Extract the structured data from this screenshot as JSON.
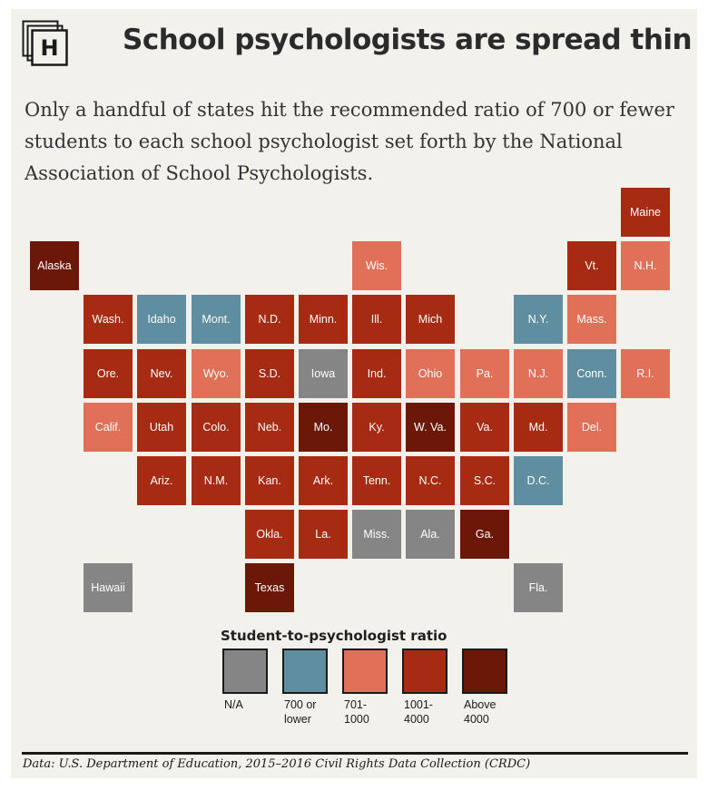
{
  "title": "School psychologists are spread thin",
  "subtitle": "Only a handful of states hit the recommended ratio of 700 or fewer students to each school psychologist set forth by the National Association of School Psychologists.",
  "logo_icon": "huffpost-h-logo",
  "source": "Data: U.S. Department of Education, 2015–2016 Civil Rights Data Collection (CRDC)",
  "colors": {
    "na": "#858585",
    "le700": "#5e8ea0",
    "r701_1000": "#e07057",
    "r1001_4000": "#a72b13",
    "above4000": "#6b1808"
  },
  "chart_data": {
    "type": "tile-map",
    "title": "School psychologists are spread thin",
    "legend": {
      "title": "Student-to-psychologist ratio",
      "categories": [
        {
          "key": "na",
          "label": "N/A"
        },
        {
          "key": "le700",
          "label": "700 or lower"
        },
        {
          "key": "r701_1000",
          "label": "701-1000"
        },
        {
          "key": "r1001_4000",
          "label": "1001-4000"
        },
        {
          "key": "above4000",
          "label": "Above 4000"
        }
      ]
    },
    "states": [
      {
        "label": "Maine",
        "cat": "r1001_4000"
      },
      {
        "label": "Alaska",
        "cat": "above4000"
      },
      {
        "label": "Wis.",
        "cat": "r701_1000"
      },
      {
        "label": "Vt.",
        "cat": "r1001_4000"
      },
      {
        "label": "N.H.",
        "cat": "r701_1000"
      },
      {
        "label": "Wash.",
        "cat": "r1001_4000"
      },
      {
        "label": "Idaho",
        "cat": "le700"
      },
      {
        "label": "Mont.",
        "cat": "le700"
      },
      {
        "label": "N.D.",
        "cat": "r1001_4000"
      },
      {
        "label": "Minn.",
        "cat": "r1001_4000"
      },
      {
        "label": "Ill.",
        "cat": "r1001_4000"
      },
      {
        "label": "Mich",
        "cat": "r1001_4000"
      },
      {
        "label": "N.Y.",
        "cat": "le700"
      },
      {
        "label": "Mass.",
        "cat": "r701_1000"
      },
      {
        "label": "Ore.",
        "cat": "r1001_4000"
      },
      {
        "label": "Nev.",
        "cat": "r1001_4000"
      },
      {
        "label": "Wyo.",
        "cat": "r701_1000"
      },
      {
        "label": "S.D.",
        "cat": "r1001_4000"
      },
      {
        "label": "Iowa",
        "cat": "na"
      },
      {
        "label": "Ind.",
        "cat": "r1001_4000"
      },
      {
        "label": "Ohio",
        "cat": "r701_1000"
      },
      {
        "label": "Pa.",
        "cat": "r701_1000"
      },
      {
        "label": "N.J.",
        "cat": "r701_1000"
      },
      {
        "label": "Conn.",
        "cat": "le700"
      },
      {
        "label": "R.I.",
        "cat": "r701_1000"
      },
      {
        "label": "Calif.",
        "cat": "r701_1000"
      },
      {
        "label": "Utah",
        "cat": "r1001_4000"
      },
      {
        "label": "Colo.",
        "cat": "r1001_4000"
      },
      {
        "label": "Neb.",
        "cat": "r1001_4000"
      },
      {
        "label": "Mo.",
        "cat": "above4000"
      },
      {
        "label": "Ky.",
        "cat": "r1001_4000"
      },
      {
        "label": "W. Va.",
        "cat": "above4000"
      },
      {
        "label": "Va.",
        "cat": "r1001_4000"
      },
      {
        "label": "Md.",
        "cat": "r1001_4000"
      },
      {
        "label": "Del.",
        "cat": "r701_1000"
      },
      {
        "label": "Ariz.",
        "cat": "r1001_4000"
      },
      {
        "label": "N.M.",
        "cat": "r1001_4000"
      },
      {
        "label": "Kan.",
        "cat": "r1001_4000"
      },
      {
        "label": "Ark.",
        "cat": "r1001_4000"
      },
      {
        "label": "Tenn.",
        "cat": "r1001_4000"
      },
      {
        "label": "N.C.",
        "cat": "r1001_4000"
      },
      {
        "label": "S.C.",
        "cat": "r1001_4000"
      },
      {
        "label": "D.C.",
        "cat": "le700"
      },
      {
        "label": "Okla.",
        "cat": "r1001_4000"
      },
      {
        "label": "La.",
        "cat": "r1001_4000"
      },
      {
        "label": "Miss.",
        "cat": "na"
      },
      {
        "label": "Ala.",
        "cat": "na"
      },
      {
        "label": "Ga.",
        "cat": "above4000"
      },
      {
        "label": "Hawaii",
        "cat": "na"
      },
      {
        "label": "Texas",
        "cat": "above4000"
      },
      {
        "label": "Fla.",
        "cat": "na"
      }
    ]
  }
}
